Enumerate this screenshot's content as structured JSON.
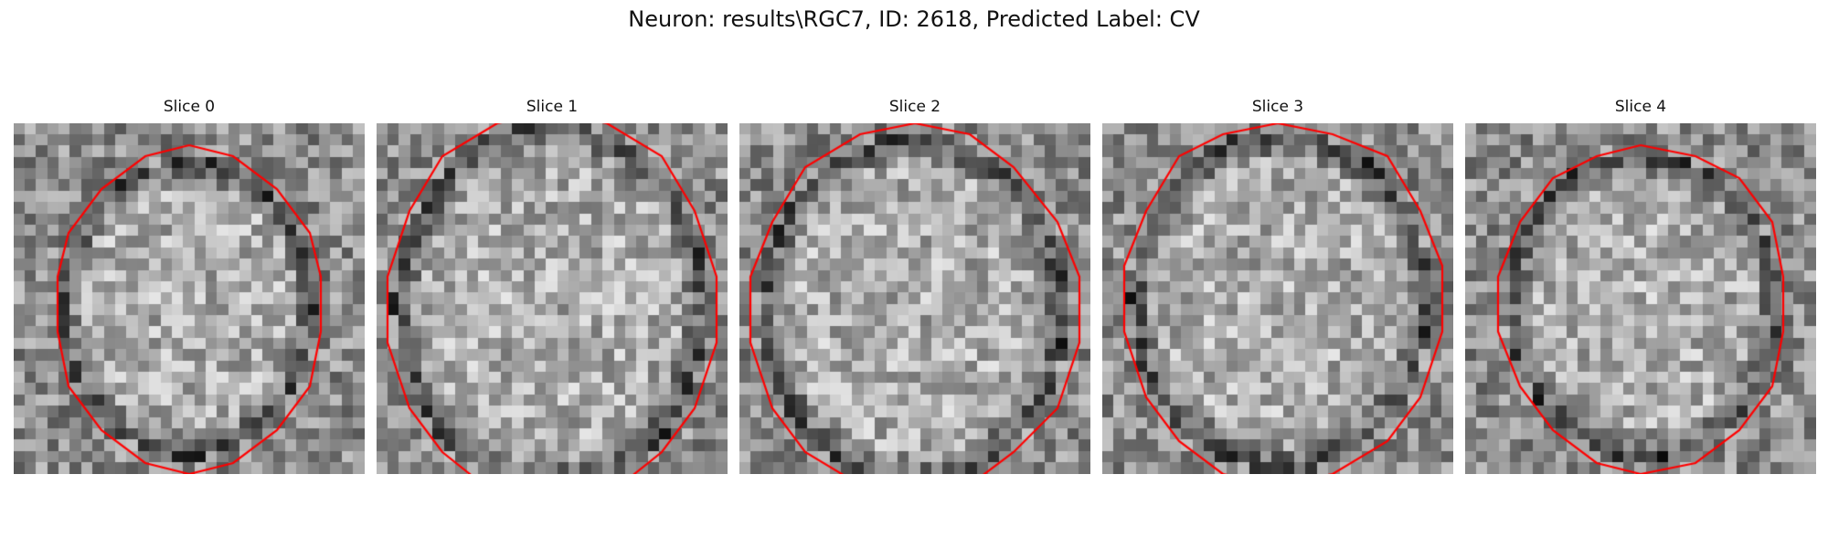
{
  "figure": {
    "title": "Neuron: results\\RGC7, ID: 2618, Predicted Label: CV"
  },
  "panels": [
    {
      "title": "Slice 0"
    },
    {
      "title": "Slice 1"
    },
    {
      "title": "Slice 2"
    },
    {
      "title": "Slice 3"
    },
    {
      "title": "Slice 4"
    }
  ],
  "colors": {
    "contour": "#ff0000",
    "background": "#ffffff"
  }
}
